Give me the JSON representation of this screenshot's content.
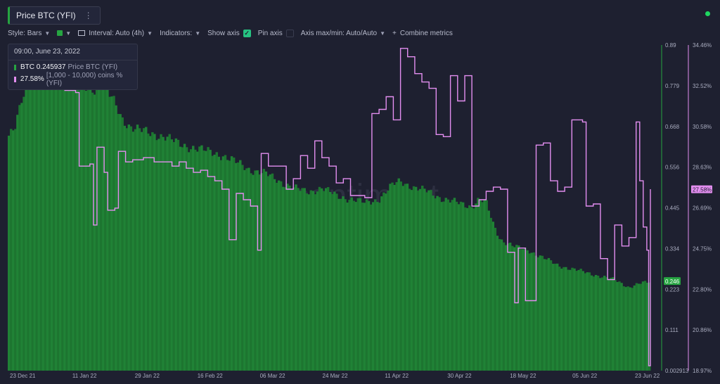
{
  "metric_tab": {
    "label": "Price BTC (YFI)",
    "menu_icon": "more-vertical-icon"
  },
  "toolbar": {
    "style_label": "Style: Bars",
    "color_accent": "#26a541",
    "interval_label": "Interval: Auto (4h)",
    "indicators_label": "Indicators:",
    "show_axis_label": "Show axis",
    "show_axis_checked": true,
    "pin_axis_label": "Pin axis",
    "pin_axis_checked": false,
    "axis_range_label": "Axis max/min: Auto/Auto",
    "combine_label": "Combine metrics"
  },
  "tooltip": {
    "date": "09:00, June 23, 2022",
    "row1_value": "BTC 0.245937",
    "row1_label": "Price BTC (YFI)",
    "row2_value": "27.58%",
    "row2_label": "[1,000 - 10,000) coins % (YFI)"
  },
  "watermark": "santiment",
  "chart_data": {
    "type": "bar",
    "x_tick_labels": [
      "23 Dec 21",
      "11 Jan 22",
      "29 Jan 22",
      "16 Feb 22",
      "06 Mar 22",
      "24 Mar 22",
      "11 Apr 22",
      "30 Apr 22",
      "18 May 22",
      "05 Jun 22",
      "23 Jun 22"
    ],
    "left_axis": {
      "ticks": [
        "0.89",
        "0.779",
        "0.668",
        "0.556",
        "0.445",
        "0.334",
        "0.223",
        "0.111",
        "0.002913"
      ],
      "min": 0.002913,
      "max": 0.89,
      "current_badge": "0.246"
    },
    "right_axis": {
      "ticks": [
        "34.46%",
        "32.52%",
        "30.58%",
        "28.63%",
        "26.69%",
        "24.75%",
        "22.80%",
        "20.86%",
        "18.97%"
      ],
      "min": 18.97,
      "max": 34.46,
      "current_badge": "27.58%"
    },
    "series": [
      {
        "name": "Price BTC (YFI)",
        "style": "bars",
        "color": "#1f7a32",
        "points": [
          [
            0,
            0.64
          ],
          [
            2,
            0.66
          ],
          [
            4,
            0.74
          ],
          [
            6,
            0.8
          ],
          [
            8,
            0.86
          ],
          [
            9,
            0.88
          ],
          [
            12,
            0.85
          ],
          [
            16,
            0.8
          ],
          [
            20,
            0.78
          ],
          [
            24,
            0.77
          ],
          [
            26,
            0.79
          ],
          [
            28,
            0.76
          ],
          [
            30,
            0.73
          ],
          [
            32,
            0.69
          ],
          [
            34,
            0.67
          ],
          [
            36,
            0.66
          ],
          [
            40,
            0.65
          ],
          [
            44,
            0.64
          ],
          [
            48,
            0.62
          ],
          [
            52,
            0.61
          ],
          [
            56,
            0.6
          ],
          [
            60,
            0.59
          ],
          [
            64,
            0.57
          ],
          [
            68,
            0.55
          ],
          [
            72,
            0.54
          ],
          [
            76,
            0.52
          ],
          [
            80,
            0.5
          ],
          [
            84,
            0.49
          ],
          [
            88,
            0.5
          ],
          [
            92,
            0.48
          ],
          [
            96,
            0.47
          ],
          [
            100,
            0.46
          ],
          [
            104,
            0.47
          ],
          [
            108,
            0.51
          ],
          [
            110,
            0.52
          ],
          [
            114,
            0.5
          ],
          [
            118,
            0.49
          ],
          [
            122,
            0.47
          ],
          [
            126,
            0.46
          ],
          [
            130,
            0.45
          ],
          [
            132,
            0.47
          ],
          [
            134,
            0.46
          ],
          [
            136,
            0.4
          ],
          [
            138,
            0.36
          ],
          [
            142,
            0.34
          ],
          [
            146,
            0.33
          ],
          [
            150,
            0.31
          ],
          [
            154,
            0.29
          ],
          [
            158,
            0.28
          ],
          [
            162,
            0.27
          ],
          [
            166,
            0.26
          ],
          [
            170,
            0.25
          ],
          [
            174,
            0.23
          ],
          [
            177,
            0.24
          ],
          [
            180,
            0.245
          ]
        ]
      },
      {
        "name": "[1,000 - 10,000) coins % (YFI)",
        "style": "step-line",
        "color": "#e38ef0",
        "points": [
          [
            0,
            33.0
          ],
          [
            5,
            32.6
          ],
          [
            8,
            32.9
          ],
          [
            14,
            32.9
          ],
          [
            16,
            32.3
          ],
          [
            19,
            32.2
          ],
          [
            20,
            28.7
          ],
          [
            23,
            28.8
          ],
          [
            24,
            25.9
          ],
          [
            25,
            29.6
          ],
          [
            27,
            28.4
          ],
          [
            28,
            26.6
          ],
          [
            30,
            26.7
          ],
          [
            31,
            29.4
          ],
          [
            33,
            28.9
          ],
          [
            35,
            29.0
          ],
          [
            38,
            29.1
          ],
          [
            41,
            28.9
          ],
          [
            44,
            28.9
          ],
          [
            46,
            28.7
          ],
          [
            48,
            28.9
          ],
          [
            50,
            28.6
          ],
          [
            52,
            28.4
          ],
          [
            54,
            28.5
          ],
          [
            56,
            28.2
          ],
          [
            58,
            28.0
          ],
          [
            60,
            27.6
          ],
          [
            62,
            25.2
          ],
          [
            64,
            27.4
          ],
          [
            66,
            27.1
          ],
          [
            68,
            26.8
          ],
          [
            70,
            24.7
          ],
          [
            71,
            29.3
          ],
          [
            73,
            28.7
          ],
          [
            76,
            28.7
          ],
          [
            78,
            27.6
          ],
          [
            80,
            28.1
          ],
          [
            82,
            29.2
          ],
          [
            84,
            28.6
          ],
          [
            86,
            29.9
          ],
          [
            88,
            29.1
          ],
          [
            90,
            28.7
          ],
          [
            92,
            27.9
          ],
          [
            94,
            28.1
          ],
          [
            96,
            27.3
          ],
          [
            98,
            27.3
          ],
          [
            100,
            27.2
          ],
          [
            102,
            31.2
          ],
          [
            104,
            31.4
          ],
          [
            106,
            32.0
          ],
          [
            108,
            30.9
          ],
          [
            110,
            34.3
          ],
          [
            112,
            33.9
          ],
          [
            114,
            33.1
          ],
          [
            116,
            32.7
          ],
          [
            118,
            32.4
          ],
          [
            120,
            30.2
          ],
          [
            122,
            30.1
          ],
          [
            124,
            33.0
          ],
          [
            126,
            31.8
          ],
          [
            128,
            33.0
          ],
          [
            130,
            26.8
          ],
          [
            132,
            27.1
          ],
          [
            134,
            27.5
          ],
          [
            136,
            27.7
          ],
          [
            138,
            27.6
          ],
          [
            140,
            24.6
          ],
          [
            142,
            22.2
          ],
          [
            143,
            24.8
          ],
          [
            145,
            22.3
          ],
          [
            148,
            29.7
          ],
          [
            150,
            29.8
          ],
          [
            152,
            28.0
          ],
          [
            154,
            27.5
          ],
          [
            156,
            27.7
          ],
          [
            158,
            30.9
          ],
          [
            161,
            30.8
          ],
          [
            162,
            26.8
          ],
          [
            164,
            26.9
          ],
          [
            166,
            24.3
          ],
          [
            168,
            23.3
          ],
          [
            170,
            25.9
          ],
          [
            172,
            24.9
          ],
          [
            174,
            25.3
          ],
          [
            176,
            30.8
          ],
          [
            177,
            28.0
          ],
          [
            178,
            25.8
          ],
          [
            179,
            24.7
          ],
          [
            179.5,
            19.2
          ],
          [
            180,
            27.6
          ]
        ]
      }
    ]
  }
}
